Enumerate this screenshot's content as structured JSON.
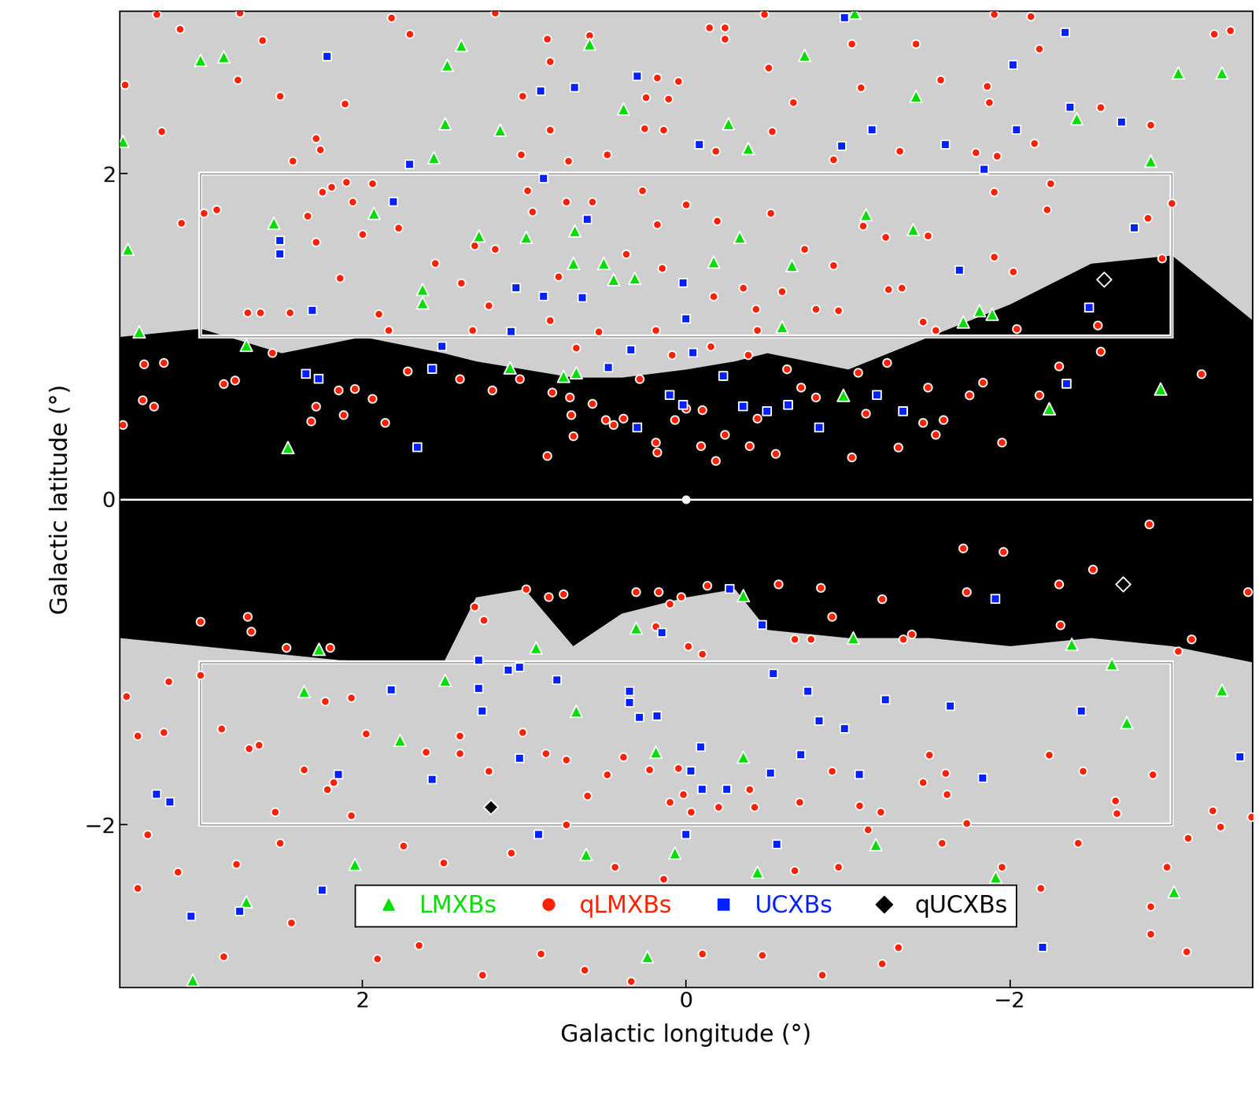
{
  "chart_data": {
    "type": "scatter",
    "x_label": "Galactic longitude (°)",
    "y_label": "Galactic latitude (°)",
    "xlim": [
      3.5,
      -3.5
    ],
    "ylim": [
      -3,
      3
    ],
    "xticks": [
      2,
      0,
      {
        "value": -2,
        "label": "−2"
      }
    ],
    "yticks": [
      {
        "value": -2,
        "label": "−2"
      },
      0,
      2
    ],
    "legend": "lower center",
    "grid": false,
    "dark_region": {
      "x": [
        3.5,
        3.0,
        2.5,
        2.0,
        1.5,
        1.3,
        1.0,
        0.7,
        0.4,
        0.0,
        -0.3,
        -0.5,
        -1.0,
        -1.5,
        -2.0,
        -2.5,
        -3.0,
        -3.5
      ],
      "upper": [
        1.0,
        1.05,
        0.9,
        1.0,
        0.9,
        0.85,
        0.8,
        0.75,
        0.75,
        0.8,
        0.85,
        0.9,
        0.8,
        1.0,
        1.2,
        1.45,
        1.5,
        1.1
      ],
      "lower": [
        -0.85,
        -0.9,
        -0.95,
        -1.0,
        -1.0,
        -0.6,
        -0.55,
        -0.9,
        -0.7,
        -0.6,
        -0.55,
        -0.8,
        -0.85,
        -0.85,
        -0.9,
        -0.85,
        -0.9,
        -1.0
      ]
    },
    "boxes": [
      {
        "xlim": [
          3,
          -3
        ],
        "ylim": [
          1,
          2
        ]
      },
      {
        "xlim": [
          3,
          -3
        ],
        "ylim": [
          -2,
          -1
        ]
      }
    ],
    "reference_line": 0,
    "galactic_center": [
      0,
      0
    ],
    "series": [
      {
        "name": "qLMXBs",
        "color": "#ff2200",
        "marker": "circle",
        "x": [
          3.27,
          2.76,
          1.82,
          3.13,
          2.62,
          3.47,
          2.77,
          2.51,
          2.11,
          3.24,
          2.29,
          2.26,
          2.43,
          2.1,
          1.71,
          1.18,
          0.86,
          0.6,
          0.84,
          0.18,
          0.05,
          1.01,
          0.25,
          0.11,
          0.84,
          0.26,
          0.14,
          1.02,
          0.73,
          0.49,
          -0.14,
          -0.24,
          -0.24,
          -0.48,
          -0.51,
          -0.66,
          -0.53,
          -0.18,
          -0.91,
          -1.08,
          -1.02,
          -1.42,
          -1.57,
          -1.32,
          -1.9,
          -2.13,
          -2.18,
          -1.86,
          -1.87,
          -2.15,
          -1.79,
          -1.92,
          -2.56,
          -2.87,
          -3.26,
          -3.36,
          2.98,
          2.9,
          3.12,
          2.25,
          2.19,
          2.06,
          1.94,
          2.34,
          2.29,
          2.0,
          1.78,
          1.55,
          2.14,
          2.71,
          2.63,
          2.45,
          1.31,
          1.18,
          0.95,
          0.98,
          0.74,
          0.58,
          0.27,
          0.18,
          0.0,
          -0.19,
          -0.52,
          -0.73,
          -0.91,
          0.15,
          0.37,
          1.39,
          1.22,
          0.79,
          -0.17,
          -0.35,
          -0.43,
          -0.59,
          -0.8,
          -0.94,
          -1.25,
          -1.33,
          -1.09,
          -1.23,
          -1.49,
          -1.9,
          -2.02,
          -2.23,
          -2.25,
          -2.85,
          -2.94,
          -3.0,
          -1.9,
          -1.46,
          -1.54,
          -2.04,
          -2.54,
          1.9,
          1.84,
          1.32,
          0.84,
          0.54,
          0.19,
          -0.44,
          3.35,
          3.23,
          2.86,
          2.79,
          2.15,
          2.05,
          1.94,
          2.29,
          2.32,
          2.12,
          1.86,
          3.48,
          3.36,
          3.29,
          1.2,
          0.83,
          0.72,
          0.71,
          0.7,
          0.86,
          0.68,
          0.58,
          0.5,
          0.45,
          0.39,
          0.19,
          0.18,
          0.07,
          0.0,
          -0.1,
          -0.09,
          -0.18,
          -0.24,
          -0.39,
          -0.55,
          -0.44,
          -0.71,
          -0.8,
          -1.02,
          -1.11,
          -1.31,
          -1.46,
          -1.54,
          -1.59,
          -1.75,
          -1.95,
          -2.18,
          -2.56,
          -3.18,
          -1.24,
          -1.06,
          -0.62,
          -0.38,
          -0.15,
          0.09,
          0.29,
          1.03,
          1.4,
          1.72,
          2.56,
          -1.49,
          -1.83,
          -2.3,
          -2.86,
          -1.71,
          -1.96,
          -1.73,
          -2.3,
          -2.51,
          -3.47,
          3.0,
          2.71,
          2.69,
          1.31,
          0.99,
          0.85,
          0.76,
          0.31,
          0.17,
          0.1,
          0.03,
          -0.13,
          -0.57,
          -0.83,
          -0.9,
          -1.21,
          -2.31,
          -3.12,
          -3.04,
          2.47,
          2.2,
          1.25,
          0.19,
          -0.01,
          -0.1,
          -0.67,
          -0.77,
          -1.34,
          -1.39,
          3.46,
          3.2,
          3.0,
          3.39,
          3.23,
          2.87,
          2.7,
          2.64,
          2.36,
          2.18,
          2.22,
          2.07,
          1.98,
          2.07,
          2.23,
          1.4,
          1.61,
          1.4,
          1.22,
          1.01,
          0.87,
          0.74,
          0.61,
          0.49,
          0.39,
          0.23,
          0.05,
          0.02,
          -0.03,
          0.1,
          -0.2,
          -0.39,
          -0.42,
          -0.7,
          -0.9,
          -1.07,
          -1.2,
          -1.12,
          -1.5,
          -1.6,
          -1.61,
          -1.46,
          -2.24,
          -2.45,
          -2.65,
          -2.66,
          -2.88,
          -3.25,
          -3.3,
          -3.1,
          -2.97,
          -2.87,
          -2.87,
          -3.09,
          -2.19,
          -1.58,
          -1.31,
          -1.21,
          -0.84,
          -0.47,
          -0.1,
          0.34,
          0.63,
          0.9,
          1.26,
          1.65,
          1.91,
          2.44,
          2.86,
          3.39,
          3.14,
          3.33,
          2.78,
          2.54,
          2.51,
          1.75,
          1.5,
          1.08,
          0.74,
          0.44,
          0.14,
          -0.67,
          -0.94,
          -1.73,
          -1.95,
          -2.42,
          -3.49
        ],
        "y": [
          2.98,
          2.99,
          2.96,
          2.89,
          2.82,
          2.55,
          2.58,
          2.48,
          2.43,
          2.26,
          2.22,
          2.15,
          2.08,
          1.95,
          2.86,
          2.99,
          2.83,
          2.85,
          2.69,
          2.59,
          2.57,
          2.48,
          2.47,
          2.46,
          2.27,
          2.28,
          2.27,
          2.12,
          2.08,
          2.12,
          2.9,
          2.9,
          2.83,
          2.98,
          2.65,
          2.44,
          2.26,
          2.14,
          2.09,
          2.53,
          2.8,
          2.8,
          2.58,
          2.14,
          2.98,
          2.97,
          2.77,
          2.54,
          2.44,
          2.19,
          2.13,
          2.11,
          2.41,
          2.3,
          2.86,
          2.88,
          1.76,
          1.78,
          1.7,
          1.89,
          1.92,
          1.83,
          1.94,
          1.74,
          1.58,
          1.63,
          1.67,
          1.45,
          1.36,
          1.15,
          1.15,
          1.15,
          1.56,
          1.54,
          1.77,
          1.9,
          1.83,
          1.83,
          1.9,
          1.69,
          1.81,
          1.71,
          1.76,
          1.54,
          1.44,
          1.42,
          1.51,
          1.33,
          1.19,
          1.37,
          1.25,
          1.3,
          1.17,
          1.28,
          1.17,
          1.16,
          1.29,
          1.3,
          1.68,
          1.61,
          1.62,
          1.49,
          1.4,
          1.78,
          1.94,
          1.73,
          1.48,
          1.82,
          1.89,
          1.09,
          1.04,
          1.05,
          1.07,
          1.14,
          1.04,
          1.04,
          1.1,
          1.03,
          1.04,
          1.04,
          0.83,
          0.84,
          0.71,
          0.73,
          0.67,
          0.68,
          0.62,
          0.57,
          0.48,
          0.52,
          0.47,
          0.46,
          0.61,
          0.57,
          0.67,
          0.66,
          0.63,
          0.52,
          0.39,
          0.27,
          0.93,
          0.59,
          0.49,
          0.46,
          0.5,
          0.35,
          0.29,
          0.49,
          0.56,
          0.55,
          0.33,
          0.24,
          0.4,
          0.33,
          0.28,
          0.5,
          0.69,
          0.63,
          0.26,
          0.53,
          0.32,
          0.47,
          0.4,
          0.49,
          0.64,
          0.35,
          0.64,
          0.91,
          0.77,
          0.84,
          0.78,
          0.8,
          0.89,
          0.94,
          0.89,
          0.74,
          0.74,
          0.74,
          0.79,
          0.9,
          0.69,
          0.72,
          0.82,
          -0.15,
          -0.3,
          -0.32,
          -0.57,
          -0.52,
          -0.43,
          -0.57,
          -0.75,
          -0.72,
          -0.81,
          -0.66,
          -0.55,
          -0.6,
          -0.58,
          -0.57,
          -0.57,
          -0.64,
          -0.6,
          -0.53,
          -0.52,
          -0.54,
          -0.72,
          -0.61,
          -0.77,
          -0.86,
          -0.93,
          -0.91,
          -0.91,
          -0.74,
          -0.78,
          -0.9,
          -0.95,
          -0.86,
          -0.86,
          -0.86,
          -0.83,
          -1.21,
          -1.12,
          -1.08,
          -1.45,
          -1.43,
          -1.41,
          -1.53,
          -1.51,
          -1.66,
          -1.74,
          -1.78,
          -1.94,
          -1.44,
          -1.22,
          -1.24,
          -1.45,
          -1.55,
          -1.56,
          -1.67,
          -1.43,
          -1.56,
          -1.6,
          -1.82,
          -1.69,
          -1.58,
          -1.66,
          -1.65,
          -1.81,
          -1.92,
          -1.86,
          -1.89,
          -1.78,
          -1.89,
          -1.86,
          -1.67,
          -1.88,
          -1.92,
          -2.03,
          -1.57,
          -1.68,
          -1.81,
          -1.74,
          -1.57,
          -1.67,
          -1.85,
          -1.93,
          -1.69,
          -1.91,
          -2.01,
          -2.08,
          -2.26,
          -2.5,
          -2.67,
          -2.78,
          -2.39,
          -2.11,
          -2.75,
          -2.85,
          -2.92,
          -2.8,
          -2.79,
          -2.96,
          -2.89,
          -2.79,
          -2.92,
          -2.74,
          -2.82,
          -2.6,
          -2.81,
          -2.39,
          -2.29,
          -2.06,
          -2.24,
          -1.92,
          -2.11,
          -2.13,
          -2.23,
          -2.17,
          -2.0,
          -2.26,
          -2.33,
          -2.28,
          -2.26,
          -1.99,
          -2.26,
          -2.11,
          -1.95
        ]
      },
      {
        "name": "LMXBs",
        "color": "#00dd00",
        "marker": "triangle",
        "x": [
          3.0,
          2.86,
          1.39,
          1.48,
          0.6,
          -1.04,
          -0.73,
          -3.04,
          -3.31,
          0.39,
          -1.42,
          1.49,
          1.15,
          -0.26,
          -0.38,
          1.56,
          -2.41,
          -2.87,
          3.48,
          2.55,
          1.93,
          1.28,
          0.99,
          0.69,
          -0.33,
          -1.11,
          -1.4,
          3.45,
          0.7,
          0.51,
          0.45,
          0.32,
          -0.17,
          -0.65,
          1.63,
          1.63,
          -1.81,
          -1.89,
          -1.71,
          -0.59,
          3.38,
          2.72,
          1.09,
          0.76,
          0.68,
          -0.97,
          -2.93,
          -2.24,
          2.46,
          -0.35,
          0.31,
          -1.03,
          -2.38,
          2.27,
          0.93,
          1.49,
          -2.63,
          2.36,
          -3.31,
          -2.72,
          0.68,
          1.77,
          -0.35,
          -1.17,
          0.07,
          0.62,
          2.05,
          -0.44,
          -1.91,
          -3.01,
          2.72,
          3.05,
          0.24,
          0.19
        ],
        "y": [
          2.7,
          2.72,
          2.79,
          2.67,
          2.8,
          2.99,
          2.73,
          2.62,
          2.62,
          2.4,
          2.48,
          2.31,
          2.27,
          2.31,
          2.16,
          2.1,
          2.34,
          2.08,
          2.2,
          1.7,
          1.76,
          1.62,
          1.61,
          1.65,
          1.61,
          1.75,
          1.66,
          1.54,
          1.45,
          1.45,
          1.35,
          1.36,
          1.46,
          1.44,
          1.29,
          1.21,
          1.16,
          1.14,
          1.09,
          1.06,
          1.03,
          0.95,
          0.81,
          0.76,
          0.78,
          0.64,
          0.68,
          0.56,
          0.32,
          -0.59,
          -0.79,
          -0.85,
          -0.89,
          -0.92,
          -0.91,
          -1.11,
          -1.01,
          -1.18,
          -1.17,
          -1.37,
          -1.3,
          -1.48,
          -1.58,
          -2.12,
          -2.17,
          -2.18,
          -2.24,
          -2.29,
          -2.32,
          -2.41,
          -2.47,
          -2.95,
          -2.81,
          -1.55
        ]
      },
      {
        "name": "UCXBs",
        "color": "#0022ff",
        "marker": "square",
        "x": [
          2.22,
          -0.98,
          -2.34,
          0.9,
          0.69,
          0.3,
          -2.02,
          -2.37,
          -2.69,
          -2.04,
          -0.08,
          -0.96,
          -1.15,
          -1.6,
          1.71,
          -1.84,
          0.88,
          1.81,
          0.61,
          -2.77,
          2.51,
          2.51,
          -1.69,
          1.05,
          0.02,
          0.88,
          0.64,
          -2.49,
          2.31,
          0.0,
          1.08,
          0.34,
          1.51,
          -0.04,
          0.48,
          -0.23,
          2.35,
          2.27,
          1.57,
          -2.35,
          0.1,
          -1.18,
          0.02,
          -0.35,
          -0.5,
          -0.63,
          -1.34,
          -0.82,
          0.3,
          1.66,
          -0.27,
          -1.91,
          -0.47,
          0.15,
          1.28,
          1.1,
          1.03,
          -0.54,
          0.8,
          1.82,
          1.28,
          0.35,
          -0.75,
          -1.23,
          0.35,
          -1.63,
          1.26,
          -2.44,
          0.29,
          0.18,
          -0.82,
          -0.98,
          -0.09,
          -0.71,
          1.03,
          -3.42,
          -0.03,
          -0.52,
          -1.07,
          -1.83,
          2.15,
          1.57,
          -0.1,
          -0.25,
          3.27,
          3.19,
          0.91,
          0.0,
          -0.56,
          2.25,
          2.76,
          3.06,
          -2.2
        ],
        "y": [
          2.72,
          2.96,
          2.87,
          2.51,
          2.53,
          2.6,
          2.67,
          2.41,
          2.32,
          2.27,
          2.18,
          2.17,
          2.27,
          2.18,
          2.06,
          2.03,
          1.97,
          1.83,
          1.72,
          1.67,
          1.59,
          1.51,
          1.41,
          1.3,
          1.33,
          1.25,
          1.24,
          1.18,
          1.16,
          1.11,
          1.03,
          0.92,
          0.94,
          0.9,
          0.81,
          0.76,
          0.77,
          0.74,
          0.8,
          0.71,
          0.64,
          0.64,
          0.58,
          0.57,
          0.54,
          0.58,
          0.54,
          0.44,
          0.44,
          0.32,
          -0.55,
          -0.61,
          -0.77,
          -0.82,
          -0.99,
          -1.05,
          -1.03,
          -1.07,
          -1.11,
          -1.17,
          -1.16,
          -1.18,
          -1.18,
          -1.23,
          -1.25,
          -1.27,
          -1.3,
          -1.3,
          -1.34,
          -1.33,
          -1.36,
          -1.41,
          -1.52,
          -1.57,
          -1.59,
          -1.58,
          -1.67,
          -1.68,
          -1.69,
          -1.71,
          -1.69,
          -1.72,
          -1.78,
          -1.78,
          -1.81,
          -1.86,
          -2.06,
          -2.06,
          -2.12,
          -2.4,
          -2.53,
          -2.56,
          -2.75
        ]
      },
      {
        "name": "qUCXBs",
        "color": "#000000",
        "marker": "diamond",
        "x": [
          -2.58,
          -2.7,
          1.21
        ],
        "y": [
          1.35,
          -0.52,
          -1.89
        ]
      }
    ]
  }
}
